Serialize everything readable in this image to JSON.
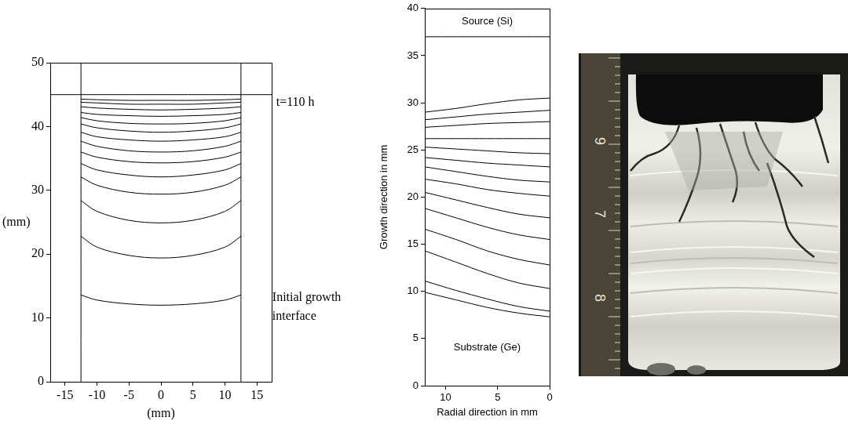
{
  "chart_data": [
    {
      "type": "line",
      "x_label": "(mm)",
      "y_label": "(mm)",
      "xlim": [
        -17.3,
        17.3
      ],
      "xticks": [
        -15,
        -10,
        -5,
        0,
        5,
        10,
        15
      ],
      "ylim": [
        0,
        50
      ],
      "yticks": [
        0,
        10,
        20,
        30,
        40,
        50
      ],
      "grid": false,
      "annotations": [
        {
          "text": "t=110 h",
          "x": 18.0,
          "y": 43.8
        },
        {
          "text": "Initial growth interface",
          "x": 17.4,
          "y": 13.2
        }
      ],
      "series": [
        {
          "color": "#000000",
          "x": [
            -12.5,
            -12.5
          ],
          "values": [
            0,
            50
          ]
        },
        {
          "color": "#000000",
          "x": [
            12.5,
            12.5
          ],
          "values": [
            0,
            50
          ]
        },
        {
          "color": "#000000",
          "x": [
            -17.3,
            17.3
          ],
          "values": [
            45,
            45
          ]
        },
        {
          "color": "#000000",
          "x": [
            -12.5,
            -10,
            -5,
            0,
            5,
            10,
            12.5
          ],
          "values": [
            44.3,
            44.2,
            44.1,
            44.1,
            44.1,
            44.2,
            44.3
          ]
        },
        {
          "color": "#000000",
          "x": [
            -12.5,
            -10,
            -5,
            0,
            5,
            10,
            12.5
          ],
          "values": [
            43.8,
            43.7,
            43.5,
            43.5,
            43.5,
            43.7,
            43.8
          ]
        },
        {
          "color": "#000000",
          "x": [
            -12.5,
            -10,
            -5,
            0,
            5,
            10,
            12.5
          ],
          "values": [
            43.1,
            42.9,
            42.7,
            42.6,
            42.7,
            42.9,
            43.1
          ]
        },
        {
          "color": "#000000",
          "x": [
            -12.5,
            -10,
            -5,
            0,
            5,
            10,
            12.5
          ],
          "values": [
            42.2,
            41.9,
            41.7,
            41.6,
            41.7,
            41.9,
            42.2
          ]
        },
        {
          "color": "#000000",
          "x": [
            -12.5,
            -10,
            -5,
            0,
            5,
            10,
            12.5
          ],
          "values": [
            41.4,
            40.9,
            40.5,
            40.4,
            40.5,
            40.9,
            41.4
          ]
        },
        {
          "color": "#000000",
          "x": [
            -12.5,
            -10,
            -5,
            0,
            5,
            10,
            12.5
          ],
          "values": [
            40.4,
            39.8,
            39.3,
            39.1,
            39.3,
            39.8,
            40.4
          ]
        },
        {
          "color": "#000000",
          "x": [
            -12.5,
            -10,
            -5,
            0,
            5,
            10,
            12.5
          ],
          "values": [
            39.1,
            38.4,
            37.9,
            37.7,
            37.9,
            38.4,
            39.1
          ]
        },
        {
          "color": "#000000",
          "x": [
            -12.5,
            -10,
            -5,
            0,
            5,
            10,
            12.5
          ],
          "values": [
            37.7,
            36.9,
            36.2,
            36.0,
            36.2,
            36.9,
            37.7
          ]
        },
        {
          "color": "#000000",
          "x": [
            -12.5,
            -10,
            -5,
            0,
            5,
            10,
            12.5
          ],
          "values": [
            36.0,
            35.2,
            34.5,
            34.3,
            34.5,
            35.2,
            36.0
          ]
        },
        {
          "color": "#000000",
          "x": [
            -12.5,
            -10,
            -5,
            0,
            5,
            10,
            12.5
          ],
          "values": [
            34.2,
            33.2,
            32.4,
            32.1,
            32.4,
            33.2,
            34.2
          ]
        },
        {
          "color": "#000000",
          "x": [
            -12.5,
            -10,
            -5,
            0,
            5,
            10,
            12.5
          ],
          "values": [
            32.1,
            30.8,
            29.7,
            29.4,
            29.7,
            30.8,
            32.1
          ]
        },
        {
          "color": "#000000",
          "x": [
            -12.5,
            -10,
            -5,
            0,
            5,
            10,
            12.5
          ],
          "values": [
            28.4,
            26.7,
            25.3,
            24.9,
            25.3,
            26.7,
            28.4
          ]
        },
        {
          "color": "#000000",
          "x": [
            -12.5,
            -10,
            -5,
            0,
            5,
            10,
            12.5
          ],
          "values": [
            22.8,
            21.1,
            19.8,
            19.4,
            19.8,
            21.1,
            22.8
          ]
        },
        {
          "color": "#000000",
          "x": [
            -12.5,
            -10,
            -5,
            0,
            5,
            10,
            12.5
          ],
          "values": [
            13.6,
            12.8,
            12.2,
            12.0,
            12.2,
            12.8,
            13.6
          ]
        }
      ]
    },
    {
      "type": "line",
      "x_label": "Radial direction in mm",
      "y_label": "Growth direction in mm",
      "xlim": [
        12,
        0
      ],
      "xticks": [
        10,
        5,
        0
      ],
      "ylim": [
        0,
        40
      ],
      "yticks": [
        0,
        5,
        10,
        15,
        20,
        25,
        30,
        35,
        40
      ],
      "grid": false,
      "annotations": [
        {
          "text": "Source (Si)",
          "x": 6,
          "y": 38.6
        },
        {
          "text": "Substrate (Ge)",
          "x": 6,
          "y": 4.0
        }
      ],
      "series": [
        {
          "color": "#000000",
          "x": [
            12,
            0
          ],
          "values": [
            37,
            37
          ]
        },
        {
          "color": "#000000",
          "x": [
            12,
            9,
            6,
            3,
            0
          ],
          "values": [
            29.0,
            29.4,
            29.9,
            30.3,
            30.5
          ]
        },
        {
          "color": "#000000",
          "x": [
            12,
            9,
            6,
            3,
            0
          ],
          "values": [
            28.2,
            28.5,
            28.8,
            29.0,
            29.2
          ]
        },
        {
          "color": "#000000",
          "x": [
            12,
            9,
            6,
            3,
            0
          ],
          "values": [
            27.4,
            27.6,
            27.8,
            27.9,
            28.0
          ]
        },
        {
          "color": "#000000",
          "x": [
            12,
            9,
            6,
            3,
            0
          ],
          "values": [
            26.2,
            26.2,
            26.2,
            26.2,
            26.2
          ]
        },
        {
          "color": "#000000",
          "x": [
            12,
            9,
            6,
            3,
            0
          ],
          "values": [
            25.3,
            25.1,
            24.9,
            24.7,
            24.6
          ]
        },
        {
          "color": "#000000",
          "x": [
            12,
            9,
            6,
            3,
            0
          ],
          "values": [
            24.2,
            23.9,
            23.6,
            23.4,
            23.2
          ]
        },
        {
          "color": "#000000",
          "x": [
            12,
            9,
            6,
            3,
            0
          ],
          "values": [
            23.2,
            22.7,
            22.2,
            21.8,
            21.6
          ]
        },
        {
          "color": "#000000",
          "x": [
            12,
            9,
            6,
            3,
            0
          ],
          "values": [
            21.9,
            21.4,
            20.8,
            20.4,
            20.1
          ]
        },
        {
          "color": "#000000",
          "x": [
            12,
            9,
            6,
            3,
            0
          ],
          "values": [
            20.5,
            19.7,
            18.9,
            18.2,
            17.8
          ]
        },
        {
          "color": "#000000",
          "x": [
            12,
            9,
            6,
            3,
            0
          ],
          "values": [
            18.8,
            17.8,
            16.8,
            16.0,
            15.5
          ]
        },
        {
          "color": "#000000",
          "x": [
            12,
            9,
            6,
            3,
            0
          ],
          "values": [
            16.6,
            15.5,
            14.3,
            13.4,
            12.8
          ]
        },
        {
          "color": "#000000",
          "x": [
            12,
            9,
            6,
            3,
            0
          ],
          "values": [
            14.3,
            13.1,
            11.9,
            10.9,
            10.3
          ]
        },
        {
          "color": "#000000",
          "x": [
            12,
            9,
            6,
            3,
            0
          ],
          "values": [
            11.1,
            10.1,
            9.2,
            8.4,
            7.9
          ]
        },
        {
          "color": "#000000",
          "x": [
            12,
            9,
            6,
            3,
            0
          ],
          "values": [
            9.9,
            9.1,
            8.3,
            7.7,
            7.3
          ]
        }
      ]
    }
  ],
  "photo": {
    "ruler_labels": [
      "9",
      "7",
      "8"
    ]
  }
}
